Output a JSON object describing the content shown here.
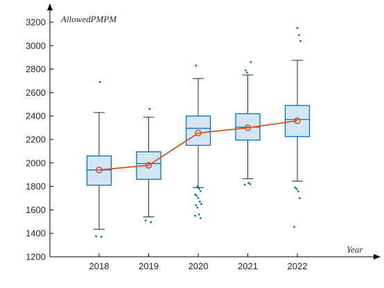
{
  "chart_data": {
    "type": "boxplot",
    "xlabel": "Year",
    "ylabel": "AllowedPMPM",
    "ylim": [
      1200,
      3300
    ],
    "yticks": [
      1200,
      1400,
      1600,
      1800,
      2000,
      2200,
      2400,
      2600,
      2800,
      3000,
      3200
    ],
    "categories": [
      "2018",
      "2019",
      "2020",
      "2021",
      "2022"
    ],
    "boxes": [
      {
        "category": "2018",
        "whisker_low": 1435,
        "q1": 1810,
        "median": 1940,
        "q3": 2060,
        "whisker_high": 2430,
        "outliers": [
          1375,
          1370,
          2690
        ]
      },
      {
        "category": "2019",
        "whisker_low": 1540,
        "q1": 1860,
        "median": 1995,
        "q3": 2095,
        "whisker_high": 2390,
        "outliers": [
          1510,
          1495,
          2460
        ]
      },
      {
        "category": "2020",
        "whisker_low": 1790,
        "q1": 2150,
        "median": 2295,
        "q3": 2400,
        "whisker_high": 2720,
        "outliers": [
          1550,
          1530,
          1560,
          1620,
          1640,
          1650,
          1670,
          1700,
          1720,
          1730,
          1760,
          1780,
          1800,
          2830
        ]
      },
      {
        "category": "2021",
        "whisker_low": 1865,
        "q1": 2195,
        "median": 2305,
        "q3": 2420,
        "whisker_high": 2750,
        "outliers": [
          1815,
          1820,
          1830,
          2770,
          2790,
          2860
        ]
      },
      {
        "category": "2022",
        "whisker_low": 1845,
        "q1": 2225,
        "median": 2370,
        "q3": 2490,
        "whisker_high": 2875,
        "outliers": [
          1455,
          1700,
          1760,
          1780,
          1790,
          3040,
          3090,
          3150
        ]
      }
    ],
    "mean_line": {
      "values": [
        1940,
        1980,
        2255,
        2300,
        2360
      ],
      "color": "#d95319"
    },
    "box_color": "#0072bd",
    "box_fill": "#d3e6f5",
    "grid": false
  }
}
